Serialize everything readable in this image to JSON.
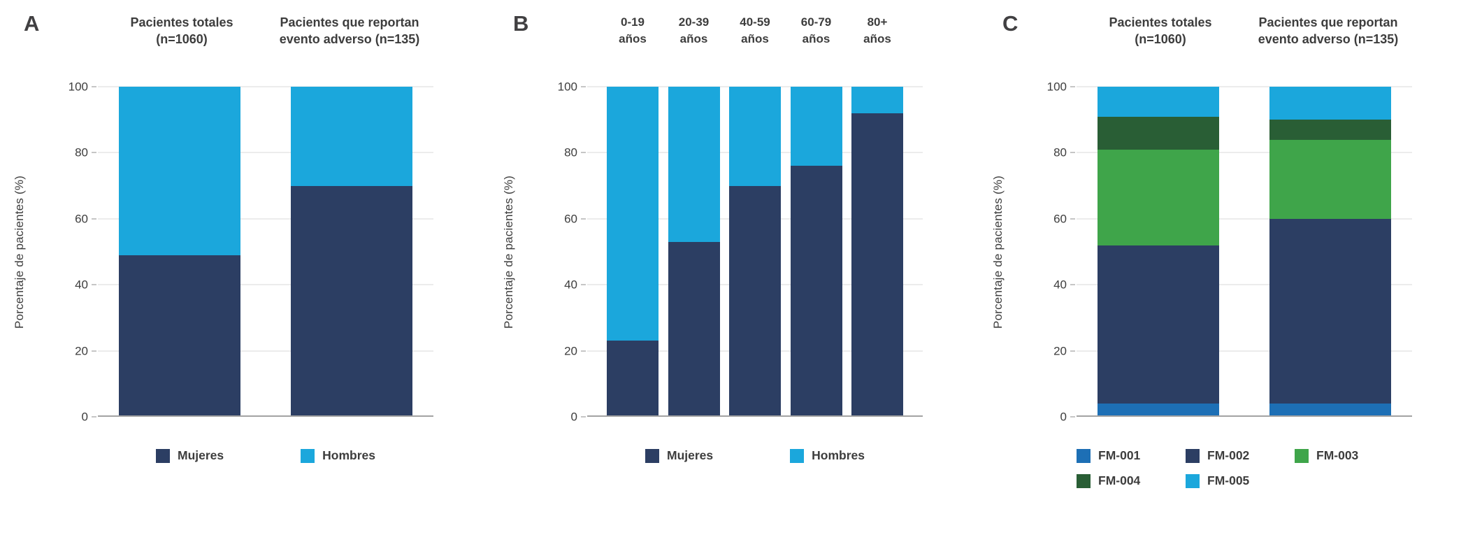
{
  "figure": {
    "background": "#ffffff",
    "text_color": "#3d3d3d",
    "grid_color": "#d9d9d9",
    "axis_line_color": "#a3a3a3",
    "panel_labels": [
      "A",
      "B",
      "C"
    ]
  },
  "chart_data": [
    {
      "panel": "A",
      "type": "bar",
      "stacking": "percent",
      "title": "",
      "xlabel": "",
      "ylabel": "Porcentaje de pacientes (%)",
      "ylim": [
        0,
        100
      ],
      "yticks": [
        0,
        20,
        40,
        60,
        80,
        100
      ],
      "grid": true,
      "legend_position": "bottom",
      "categories": [
        "Pacientes totales\n(n=1060)",
        "Pacientes que reportan\nevento adverso (n=135)"
      ],
      "series": [
        {
          "name": "Mujeres",
          "color": "#2c3e63",
          "values": [
            49,
            70
          ]
        },
        {
          "name": "Hombres",
          "color": "#1ba7dc",
          "values": [
            51,
            30
          ]
        }
      ]
    },
    {
      "panel": "B",
      "type": "bar",
      "stacking": "percent",
      "title": "",
      "xlabel": "",
      "ylabel": "Porcentaje de pacientes (%)",
      "ylim": [
        0,
        100
      ],
      "yticks": [
        0,
        20,
        40,
        60,
        80,
        100
      ],
      "grid": true,
      "legend_position": "bottom",
      "categories": [
        "0-19\naños",
        "20-39\naños",
        "40-59\naños",
        "60-79\naños",
        "80+\naños"
      ],
      "series": [
        {
          "name": "Mujeres",
          "color": "#2c3e63",
          "values": [
            23,
            53,
            70,
            76,
            92
          ]
        },
        {
          "name": "Hombres",
          "color": "#1ba7dc",
          "values": [
            77,
            47,
            30,
            24,
            8
          ]
        }
      ]
    },
    {
      "panel": "C",
      "type": "bar",
      "stacking": "percent",
      "title": "",
      "xlabel": "",
      "ylabel": "Porcentaje de pacientes (%)",
      "ylim": [
        0,
        100
      ],
      "yticks": [
        0,
        20,
        40,
        60,
        80,
        100
      ],
      "grid": true,
      "legend_position": "bottom",
      "legend_columns": 3,
      "categories": [
        "Pacientes totales\n(n=1060)",
        "Pacientes que reportan\nevento adverso (n=135)"
      ],
      "series": [
        {
          "name": "FM-001",
          "color": "#1d6fb5",
          "values": [
            4,
            4
          ]
        },
        {
          "name": "FM-002",
          "color": "#2c3e63",
          "values": [
            48,
            56
          ]
        },
        {
          "name": "FM-003",
          "color": "#3fa54a",
          "values": [
            29,
            24
          ]
        },
        {
          "name": "FM-004",
          "color": "#295e35",
          "values": [
            10,
            6
          ]
        },
        {
          "name": "FM-005",
          "color": "#1ba7dc",
          "values": [
            9,
            10
          ]
        }
      ]
    }
  ]
}
